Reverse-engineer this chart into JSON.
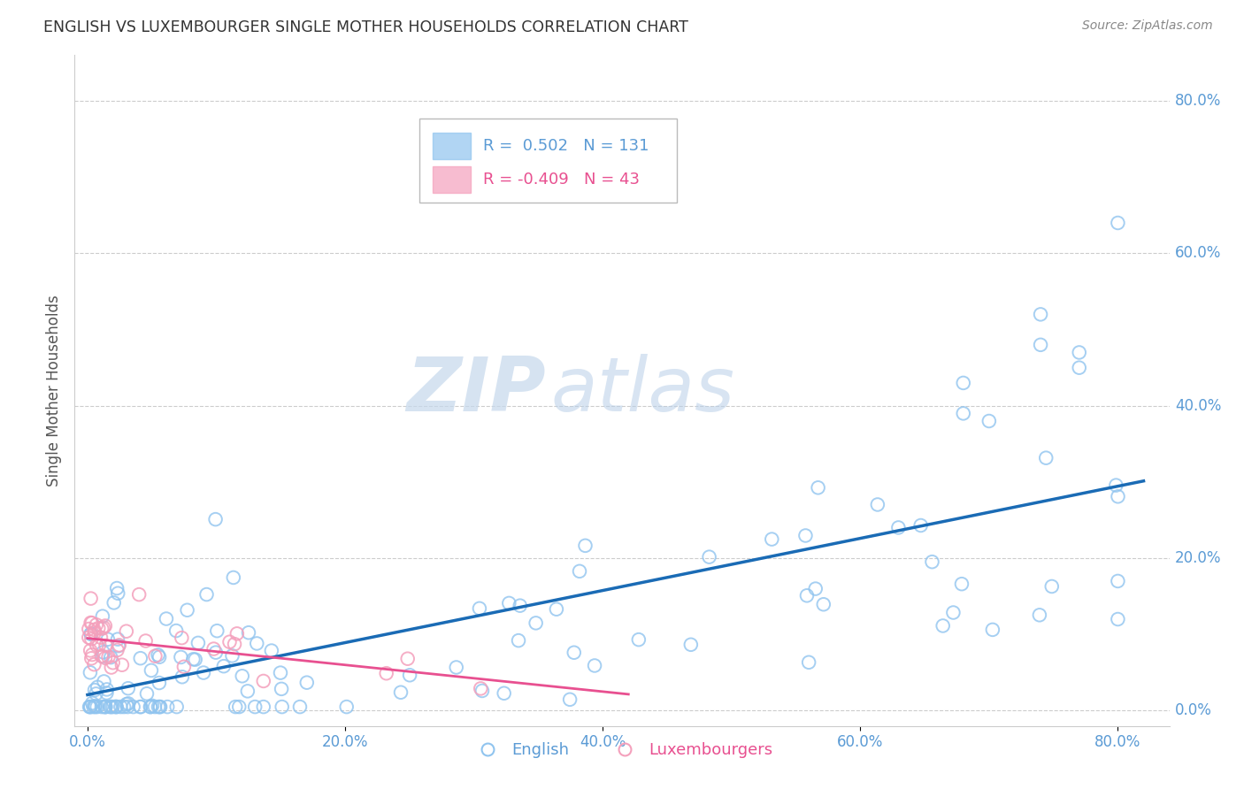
{
  "title": "ENGLISH VS LUXEMBOURGER SINGLE MOTHER HOUSEHOLDS CORRELATION CHART",
  "source": "Source: ZipAtlas.com",
  "ylabel": "Single Mother Households",
  "ytick_labels": [
    "0.0%",
    "20.0%",
    "40.0%",
    "60.0%",
    "80.0%"
  ],
  "ytick_values": [
    0.0,
    0.2,
    0.4,
    0.6,
    0.8
  ],
  "xtick_values": [
    0.0,
    0.2,
    0.4,
    0.6,
    0.8
  ],
  "xlim": [
    -0.01,
    0.84
  ],
  "ylim": [
    -0.02,
    0.86
  ],
  "legend_english_R": "0.502",
  "legend_english_N": "131",
  "legend_lux_R": "-0.409",
  "legend_lux_N": "43",
  "color_english": "#90c4ef",
  "color_lux": "#f4a0bc",
  "color_english_line": "#1a6bb5",
  "color_lux_line": "#e85090",
  "watermark_zip": "ZIP",
  "watermark_atlas": "atlas",
  "background_color": "#ffffff",
  "grid_color": "#cccccc",
  "title_color": "#333333",
  "source_color": "#888888",
  "tick_color": "#5b9bd5",
  "ylabel_color": "#555555"
}
